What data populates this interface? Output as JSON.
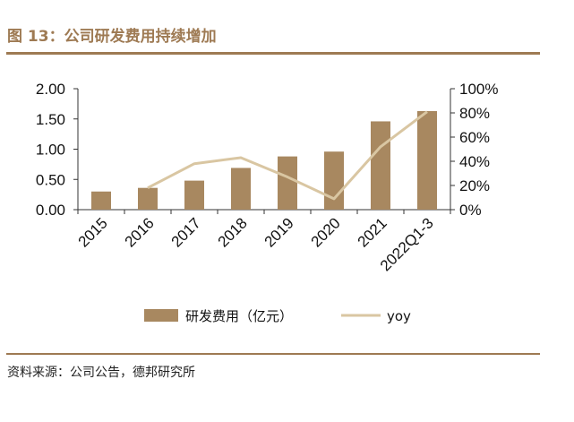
{
  "header": {
    "title": "图 13：公司研发费用持续增加"
  },
  "footer": {
    "source": "资料来源：公司公告，德邦研究所"
  },
  "colors": {
    "accent": "#9e7a53",
    "bar": "#a88860",
    "line": "#d9c6a2"
  },
  "chart_data": {
    "type": "bar",
    "categories": [
      "2015",
      "2016",
      "2017",
      "2018",
      "2019",
      "2020",
      "2021",
      "2022Q1-3"
    ],
    "series": [
      {
        "name": "研发费用（亿元）",
        "type": "bar",
        "axis": "left",
        "values": [
          0.3,
          0.36,
          0.48,
          0.69,
          0.88,
          0.96,
          1.46,
          1.63
        ]
      },
      {
        "name": "yoy",
        "type": "line",
        "axis": "right",
        "values": [
          null,
          0.18,
          0.38,
          0.43,
          0.27,
          0.09,
          0.52,
          0.81
        ]
      }
    ],
    "y_left": {
      "ylim": [
        0,
        2.0
      ],
      "ticks": [
        "0.00",
        "0.50",
        "1.00",
        "1.50",
        "2.00"
      ]
    },
    "y_right": {
      "ylim": [
        0,
        1.0
      ],
      "ticks": [
        "0%",
        "20%",
        "40%",
        "60%",
        "80%",
        "100%"
      ]
    },
    "legend": {
      "placement": "bottom",
      "entries": [
        "研发费用（亿元）",
        "yoy"
      ]
    },
    "grid": false
  }
}
